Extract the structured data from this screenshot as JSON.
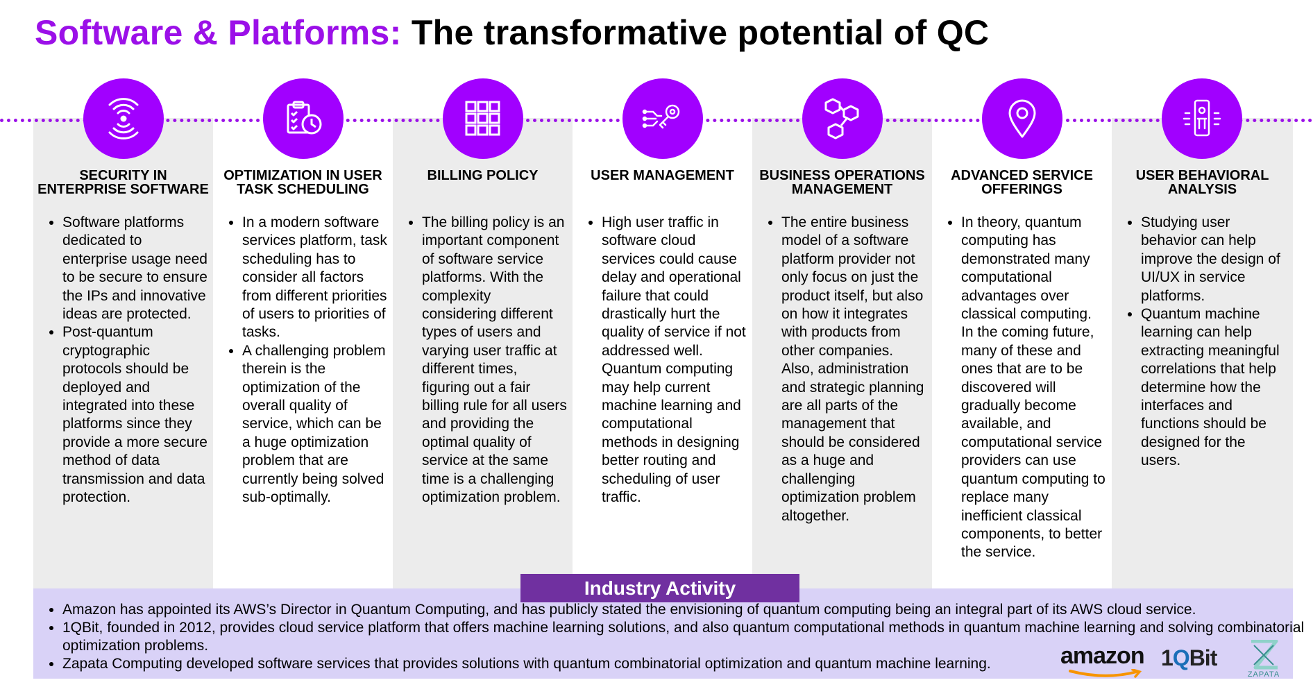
{
  "title": {
    "accent": "Software & Platforms:",
    "rest": "The transformative potential of QC"
  },
  "columns": [
    {
      "heading": "SECURITY IN ENTERPRISE SOFTWARE",
      "icon": "signal-waves-icon",
      "bullets": [
        "Software platforms dedicated to enterprise usage need to be secure to ensure the IPs and innovative ideas are protected.",
        "Post-quantum cryptographic protocols should be deployed and integrated into these platforms since they provide a more secure method of data transmission and data protection."
      ]
    },
    {
      "heading": "OPTIMIZATION IN USER TASK SCHEDULING",
      "icon": "clipboard-clock-icon",
      "bullets": [
        "In a modern software services platform, task scheduling has to consider all factors from different priorities of users to priorities of tasks.",
        "A challenging problem therein is the optimization of the overall quality of service, which can be a huge optimization problem that are currently being solved sub-optimally."
      ]
    },
    {
      "heading": "BILLING POLICY",
      "icon": "grid-icon",
      "bullets": [
        "The billing policy is an important component of software service platforms. With the complexity considering different types of users and varying user traffic at different times, figuring out a fair billing rule for all users and providing the optimal quality of service at the same time is a challenging optimization problem."
      ]
    },
    {
      "heading": "USER MANAGEMENT",
      "icon": "circuit-key-icon",
      "bullets": [
        "High user traffic in software cloud services could cause delay and operational failure that could drastically hurt the quality of service if not addressed well. Quantum computing may help current machine learning and computational methods in designing better routing and scheduling of user traffic."
      ]
    },
    {
      "heading": "BUSINESS OPERATIONS MANAGEMENT",
      "icon": "hexagon-network-icon",
      "bullets": [
        "The entire business model of a software platform provider not only focus on just the product itself, but also on how it integrates with products from other companies. Also, administration and strategic planning are all parts of the management that should be considered as a huge and challenging optimization problem altogether."
      ]
    },
    {
      "heading": "ADVANCED SERVICE OFFERINGS",
      "icon": "location-pin-icon",
      "bullets": [
        "In theory, quantum computing has demonstrated many computational advantages over classical computing. In the coming future, many of these and ones that are to be discovered will gradually become available, and computational service providers can use quantum computing to replace many inefficient classical components, to better the service."
      ]
    },
    {
      "heading": "USER BEHAVIORAL ANALYSIS",
      "icon": "person-scan-icon",
      "bullets": [
        "Studying user behavior can help improve the design of UI/UX in service platforms.",
        "Quantum machine learning can help extracting meaningful correlations that help determine how the interfaces and functions should be designed for the users."
      ]
    }
  ],
  "industry": {
    "label": "Industry Activity",
    "items": [
      "Amazon has appointed its AWS’s Director in Quantum Computing, and has publicly stated the envisioning of quantum computing being an integral part of its AWS cloud service.",
      "1QBit, founded in 2012, provides cloud service platform that offers machine learning solutions, and also quantum computational methods in quantum machine learning and solving combinatorial optimization problems.",
      "Zapata Computing developed software services that provides solutions with quantum combinatorial optimization and quantum machine learning."
    ]
  },
  "logos": {
    "amazon": "amazon",
    "oneqbit_prefix": "1",
    "oneqbit_q": "Q",
    "oneqbit_suffix": "Bit",
    "zapata": "ZAPATA"
  },
  "colors": {
    "accent_purple": "#9b10e8",
    "icon_circle": "#a100ff",
    "industry_label_bg": "#7030a0",
    "industry_box_bg": "#d9d2f7",
    "column_gray": "#ececec"
  }
}
